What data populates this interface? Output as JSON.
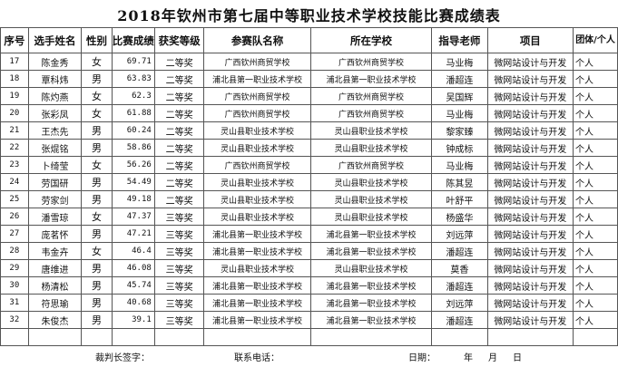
{
  "title": "2018年钦州市第七届中等职业技术学校技能比赛成绩表",
  "headers": [
    "序号",
    "选手姓名",
    "性别",
    "比赛成绩",
    "获奖等级",
    "参赛队名称",
    "所在学校",
    "指导老师",
    "项目",
    "团体/个人"
  ],
  "rows": [
    [
      "17",
      "陈金秀",
      "女",
      "69.71",
      "二等奖",
      "广西钦州商贸学校",
      "广西钦州商贸学校",
      "马业梅",
      "微网站设计与开发",
      "个人"
    ],
    [
      "18",
      "覃科炜",
      "男",
      "63.83",
      "二等奖",
      "浦北县第一职业技术学校",
      "浦北县第一职业技术学校",
      "潘超连",
      "微网站设计与开发",
      "个人"
    ],
    [
      "19",
      "陈灼燕",
      "女",
      "62.3",
      "二等奖",
      "广西钦州商贸学校",
      "广西钦州商贸学校",
      "吴国辉",
      "微网站设计与开发",
      "个人"
    ],
    [
      "20",
      "张彩凤",
      "女",
      "61.88",
      "二等奖",
      "广西钦州商贸学校",
      "广西钦州商贸学校",
      "马业梅",
      "微网站设计与开发",
      "个人"
    ],
    [
      "21",
      "王杰先",
      "男",
      "60.24",
      "二等奖",
      "灵山县职业技术学校",
      "灵山县职业技术学校",
      "黎家臻",
      "微网站设计与开发",
      "个人"
    ],
    [
      "22",
      "张焜铭",
      "男",
      "58.86",
      "二等奖",
      "灵山县职业技术学校",
      "灵山县职业技术学校",
      "钟成标",
      "微网站设计与开发",
      "个人"
    ],
    [
      "23",
      "卜绮莹",
      "女",
      "56.26",
      "二等奖",
      "广西钦州商贸学校",
      "广西钦州商贸学校",
      "马业梅",
      "微网站设计与开发",
      "个人"
    ],
    [
      "24",
      "劳国研",
      "男",
      "54.49",
      "二等奖",
      "灵山县职业技术学校",
      "灵山县职业技术学校",
      "陈其昱",
      "微网站设计与开发",
      "个人"
    ],
    [
      "25",
      "劳家剑",
      "男",
      "49.18",
      "二等奖",
      "灵山县职业技术学校",
      "灵山县职业技术学校",
      "叶舒平",
      "微网站设计与开发",
      "个人"
    ],
    [
      "26",
      "潘雪琼",
      "女",
      "47.37",
      "三等奖",
      "灵山县职业技术学校",
      "灵山县职业技术学校",
      "杨盛华",
      "微网站设计与开发",
      "个人"
    ],
    [
      "27",
      "庞茗怀",
      "男",
      "47.21",
      "三等奖",
      "浦北县第一职业技术学校",
      "浦北县第一职业技术学校",
      "刘远萍",
      "微网站设计与开发",
      "个人"
    ],
    [
      "28",
      "韦金卉",
      "女",
      "46.4",
      "三等奖",
      "浦北县第一职业技术学校",
      "浦北县第一职业技术学校",
      "潘超连",
      "微网站设计与开发",
      "个人"
    ],
    [
      "29",
      "唐维进",
      "男",
      "46.08",
      "三等奖",
      "灵山县职业技术学校",
      "灵山县职业技术学校",
      "莫香",
      "微网站设计与开发",
      "个人"
    ],
    [
      "30",
      "杨清松",
      "男",
      "45.74",
      "三等奖",
      "浦北县第一职业技术学校",
      "浦北县第一职业技术学校",
      "潘超连",
      "微网站设计与开发",
      "个人"
    ],
    [
      "31",
      "符思瑜",
      "男",
      "40.68",
      "三等奖",
      "浦北县第一职业技术学校",
      "浦北县第一职业技术学校",
      "刘远萍",
      "微网站设计与开发",
      "个人"
    ],
    [
      "32",
      "朱俊杰",
      "男",
      "39.1",
      "三等奖",
      "浦北县第一职业技术学校",
      "浦北县第一职业技术学校",
      "潘超连",
      "微网站设计与开发",
      "个人"
    ]
  ],
  "footer": {
    "judge": "裁判长签字：",
    "phone": "联系电话：",
    "date": "日期：",
    "year": "年",
    "month": "月",
    "day": "日"
  }
}
